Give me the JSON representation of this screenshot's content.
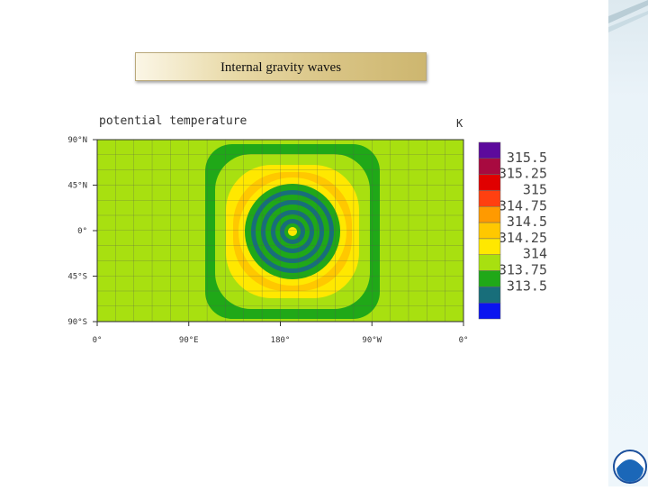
{
  "header": {
    "title": "Internal gravity waves"
  },
  "figure": {
    "title": "potential temperature",
    "unit": "K",
    "lat_labels": [
      "90°N",
      "45°N",
      "0°",
      "45°S",
      "90°S"
    ],
    "lon_labels": [
      "0°",
      "90°E",
      "180°",
      "90°W",
      "0°"
    ],
    "colorbar": {
      "labels": [
        "315.5",
        "315.25",
        "315",
        "314.75",
        "314.5",
        "314.25",
        "314",
        "313.75",
        "313.5"
      ],
      "colors": [
        "#5c0a9c",
        "#a80a40",
        "#e00000",
        "#ff4010",
        "#ff9a00",
        "#ffc800",
        "#ffe800",
        "#a8e010",
        "#20a818",
        "#186e7a",
        "#0a14f0"
      ]
    }
  }
}
